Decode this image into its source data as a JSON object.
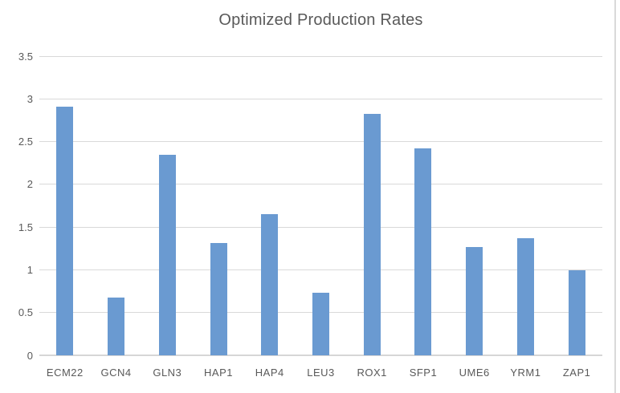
{
  "chart": {
    "colors": {
      "bar": "#6A9AD1",
      "gridline": "#D9D9D9",
      "axis_zero_line": "#D6D6D6",
      "text": "#595959",
      "background": "#FFFFFF",
      "frame_border": "#D9D9D9"
    }
  },
  "chart_data": {
    "type": "bar",
    "title": "Optimized Production Rates",
    "categories": [
      "ECM22",
      "GCN4",
      "GLN3",
      "HAP1",
      "HAP4",
      "LEU3",
      "ROX1",
      "SFP1",
      "UME6",
      "YRM1",
      "ZAP1"
    ],
    "values": [
      2.91,
      0.68,
      2.35,
      1.31,
      1.65,
      0.73,
      2.82,
      2.42,
      1.27,
      1.37,
      0.99
    ],
    "xlabel": "",
    "ylabel": "",
    "ylim": [
      0,
      3.5
    ],
    "ytick_step": 0.5,
    "ytick_labels": [
      "0",
      "0.5",
      "1",
      "1.5",
      "2",
      "2.5",
      "3",
      "3.5"
    ],
    "grid": true,
    "legend": false,
    "series_name": ""
  }
}
